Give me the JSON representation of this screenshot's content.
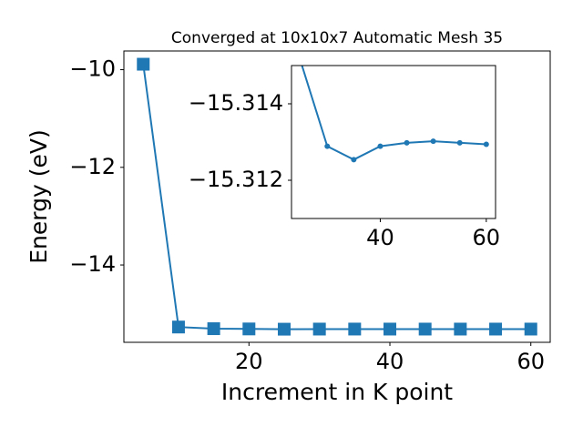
{
  "chart_data": [
    {
      "type": "line",
      "title": "Converged at 10x10x7 Automatic Mesh 35",
      "xlabel": "Increment in K point",
      "ylabel": "Energy (eV)",
      "x": [
        5,
        10,
        15,
        20,
        25,
        30,
        35,
        40,
        45,
        50,
        55,
        60
      ],
      "values": [
        -9.888,
        -15.271,
        -15.305,
        -15.31,
        -15.3151,
        -15.31289,
        -15.31254,
        -15.31289,
        -15.31298,
        -15.31302,
        -15.31298,
        -15.31294
      ],
      "color": "#1f77b4",
      "marker": "square",
      "xlim": [
        2.25,
        62.75
      ],
      "ylim": [
        -15.584,
        -9.617
      ],
      "xticks": [
        20,
        40,
        60
      ],
      "yticks": [
        {
          "value": -10,
          "label": "−10"
        },
        {
          "value": -12,
          "label": "−12"
        },
        {
          "value": -14,
          "label": "−14"
        }
      ]
    },
    {
      "type": "line",
      "x": [
        25,
        30,
        35,
        40,
        45,
        50,
        55,
        60
      ],
      "values": [
        -15.3151,
        -15.31289,
        -15.31254,
        -15.31289,
        -15.31298,
        -15.31302,
        -15.31298,
        -15.31294
      ],
      "color": "#1f77b4",
      "marker": "circle",
      "xlim": [
        23.25,
        61.75
      ],
      "ylim": [
        -15.311,
        -15.315
      ],
      "xticks": [
        40,
        60
      ],
      "yticks": [
        {
          "value": -15.314,
          "label": "−15.314"
        },
        {
          "value": -15.312,
          "label": "−15.312"
        }
      ]
    }
  ]
}
